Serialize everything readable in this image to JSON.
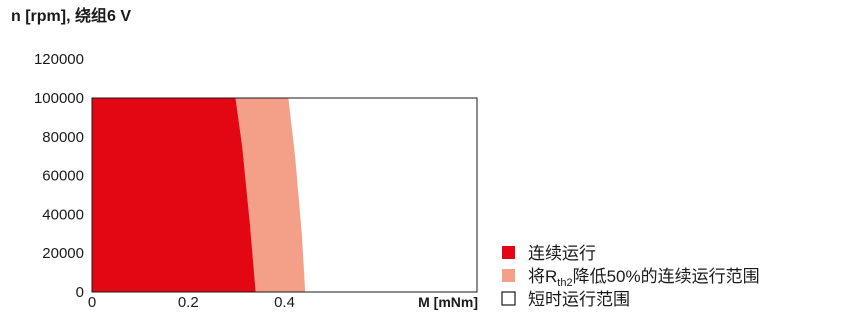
{
  "chart_data": {
    "type": "area",
    "title": "n [rpm], 绕组6 V",
    "xlabel": "M [mNm]",
    "ylabel": "",
    "xlim": [
      0,
      0.8
    ],
    "ylim": [
      0,
      100000
    ],
    "x_ticks": [
      0,
      0.2,
      0.4
    ],
    "x_tick_labels": [
      "0",
      "0.2",
      "0.4"
    ],
    "y_ticks": [
      0,
      20000,
      40000,
      60000,
      80000,
      100000,
      120000
    ],
    "y_tick_labels": [
      "0",
      "20000",
      "40000",
      "60000",
      "80000",
      "100000",
      "120000"
    ],
    "grid": false,
    "legend_position": "bottom-right",
    "series": [
      {
        "name": "连续运行",
        "color": "#e30613",
        "x": [
          0.298,
          0.312,
          0.328,
          0.34
        ],
        "y": [
          100000,
          75000,
          35000,
          0
        ]
      },
      {
        "name_main": "将R",
        "name_sub": "th2",
        "name_rest": "降低50%的连续运行范围",
        "color": "#f4a088",
        "x": [
          0.408,
          0.422,
          0.436,
          0.443
        ],
        "y": [
          100000,
          70000,
          30000,
          0
        ]
      },
      {
        "name": "短时运行范围",
        "color": "#ffffff",
        "x": [
          0.8,
          0.8
        ],
        "y": [
          100000,
          0
        ]
      }
    ]
  }
}
